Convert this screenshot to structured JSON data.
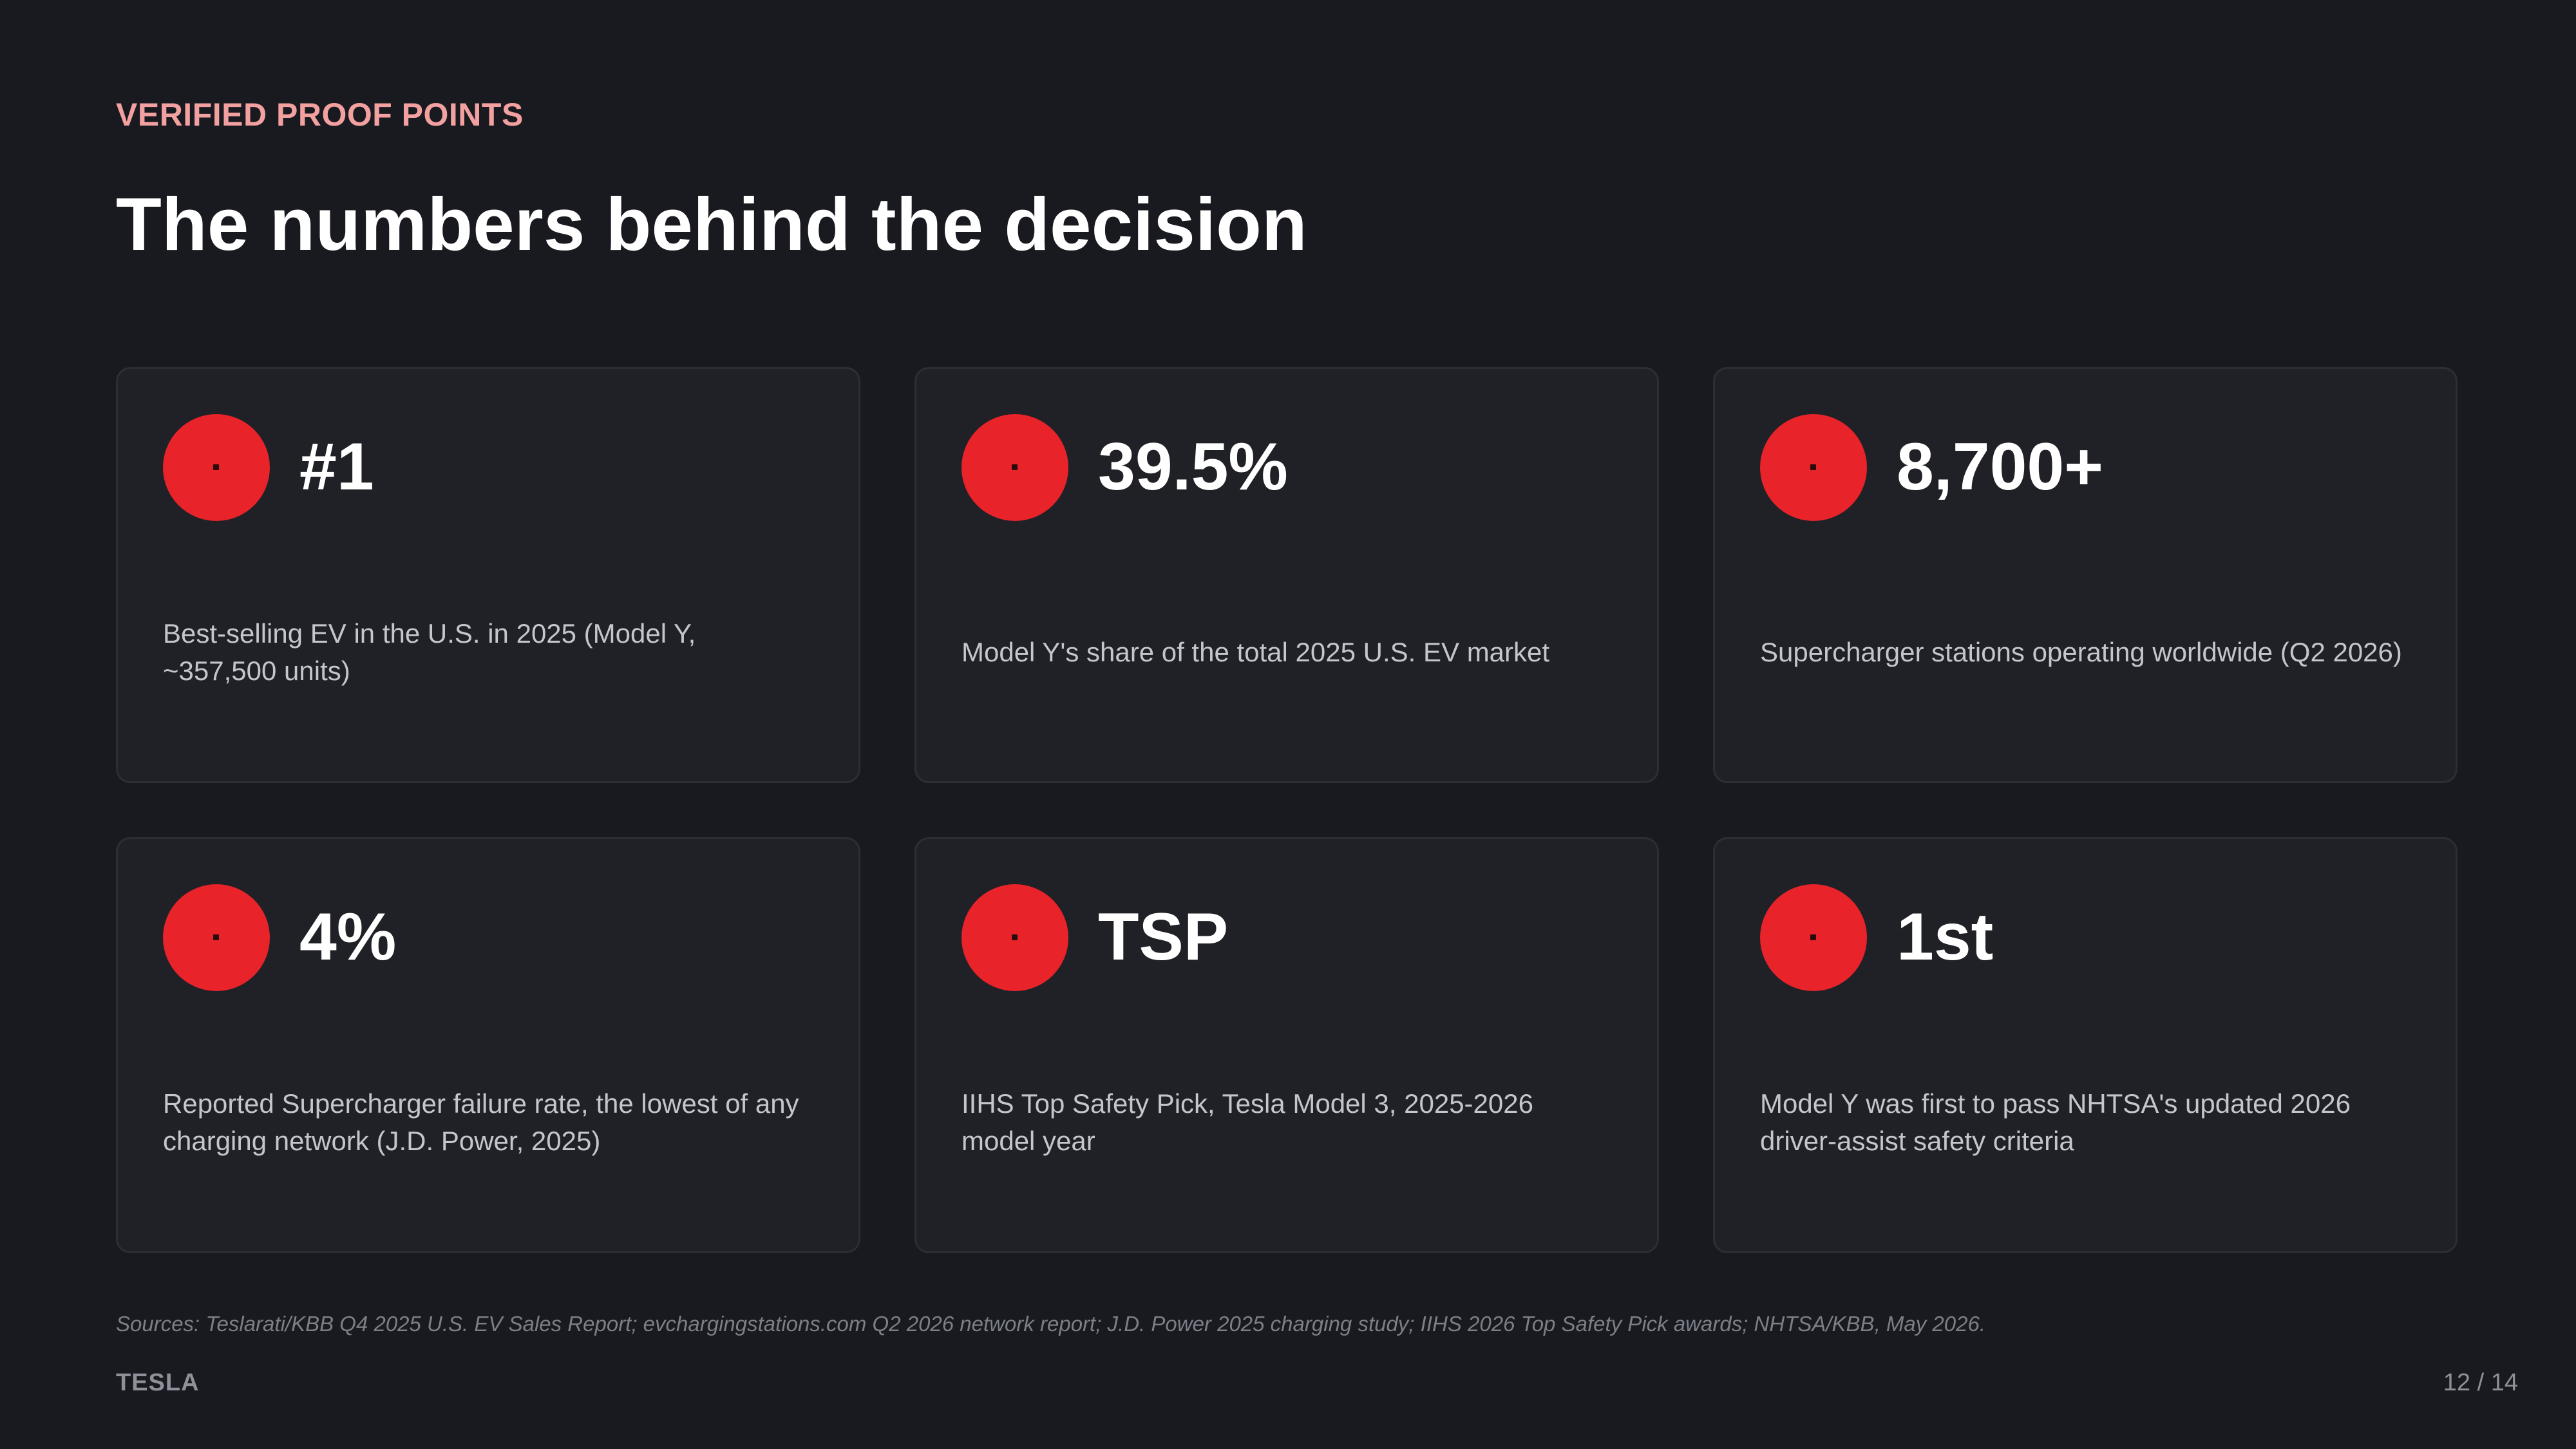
{
  "header": {
    "eyebrow": "VERIFIED PROOF POINTS",
    "title": "The numbers behind the decision"
  },
  "colors": {
    "accent": "#e8232a",
    "eyebrow": "#f2a0a0",
    "background": "#181a20",
    "card": "#1f2126"
  },
  "cards": [
    {
      "icon": "trophy-icon",
      "stat": "#1",
      "description": "Best-selling EV in the U.S. in 2025 (Model Y, ~357,500 units)"
    },
    {
      "icon": "pie-chart-icon",
      "stat": "39.5%",
      "description": "Model Y's share of the total 2025 U.S. EV market"
    },
    {
      "icon": "charging-station-icon",
      "stat": "8,700+",
      "description": "Supercharger stations operating worldwide (Q2 2026)"
    },
    {
      "icon": "wrench-icon",
      "stat": "4%",
      "description": "Reported Supercharger failure rate, the lowest of any charging network (J.D. Power, 2025)"
    },
    {
      "icon": "shield-icon",
      "stat": "TSP",
      "description": "IIHS Top Safety Pick, Tesla Model 3, 2025-2026 model year"
    },
    {
      "icon": "rocket-icon",
      "stat": "1st",
      "description": "Model Y was first to pass NHTSA's updated 2026 driver-assist safety criteria"
    }
  ],
  "footer": {
    "sources": "Sources: Teslarati/KBB Q4 2025 U.S. EV Sales Report; evchargingstations.com Q2 2026 network report; J.D. Power 2025 charging study; IIHS 2026 Top Safety Pick awards; NHTSA/KBB, May 2026.",
    "brand": "TESLA",
    "page": "12 / 14"
  }
}
